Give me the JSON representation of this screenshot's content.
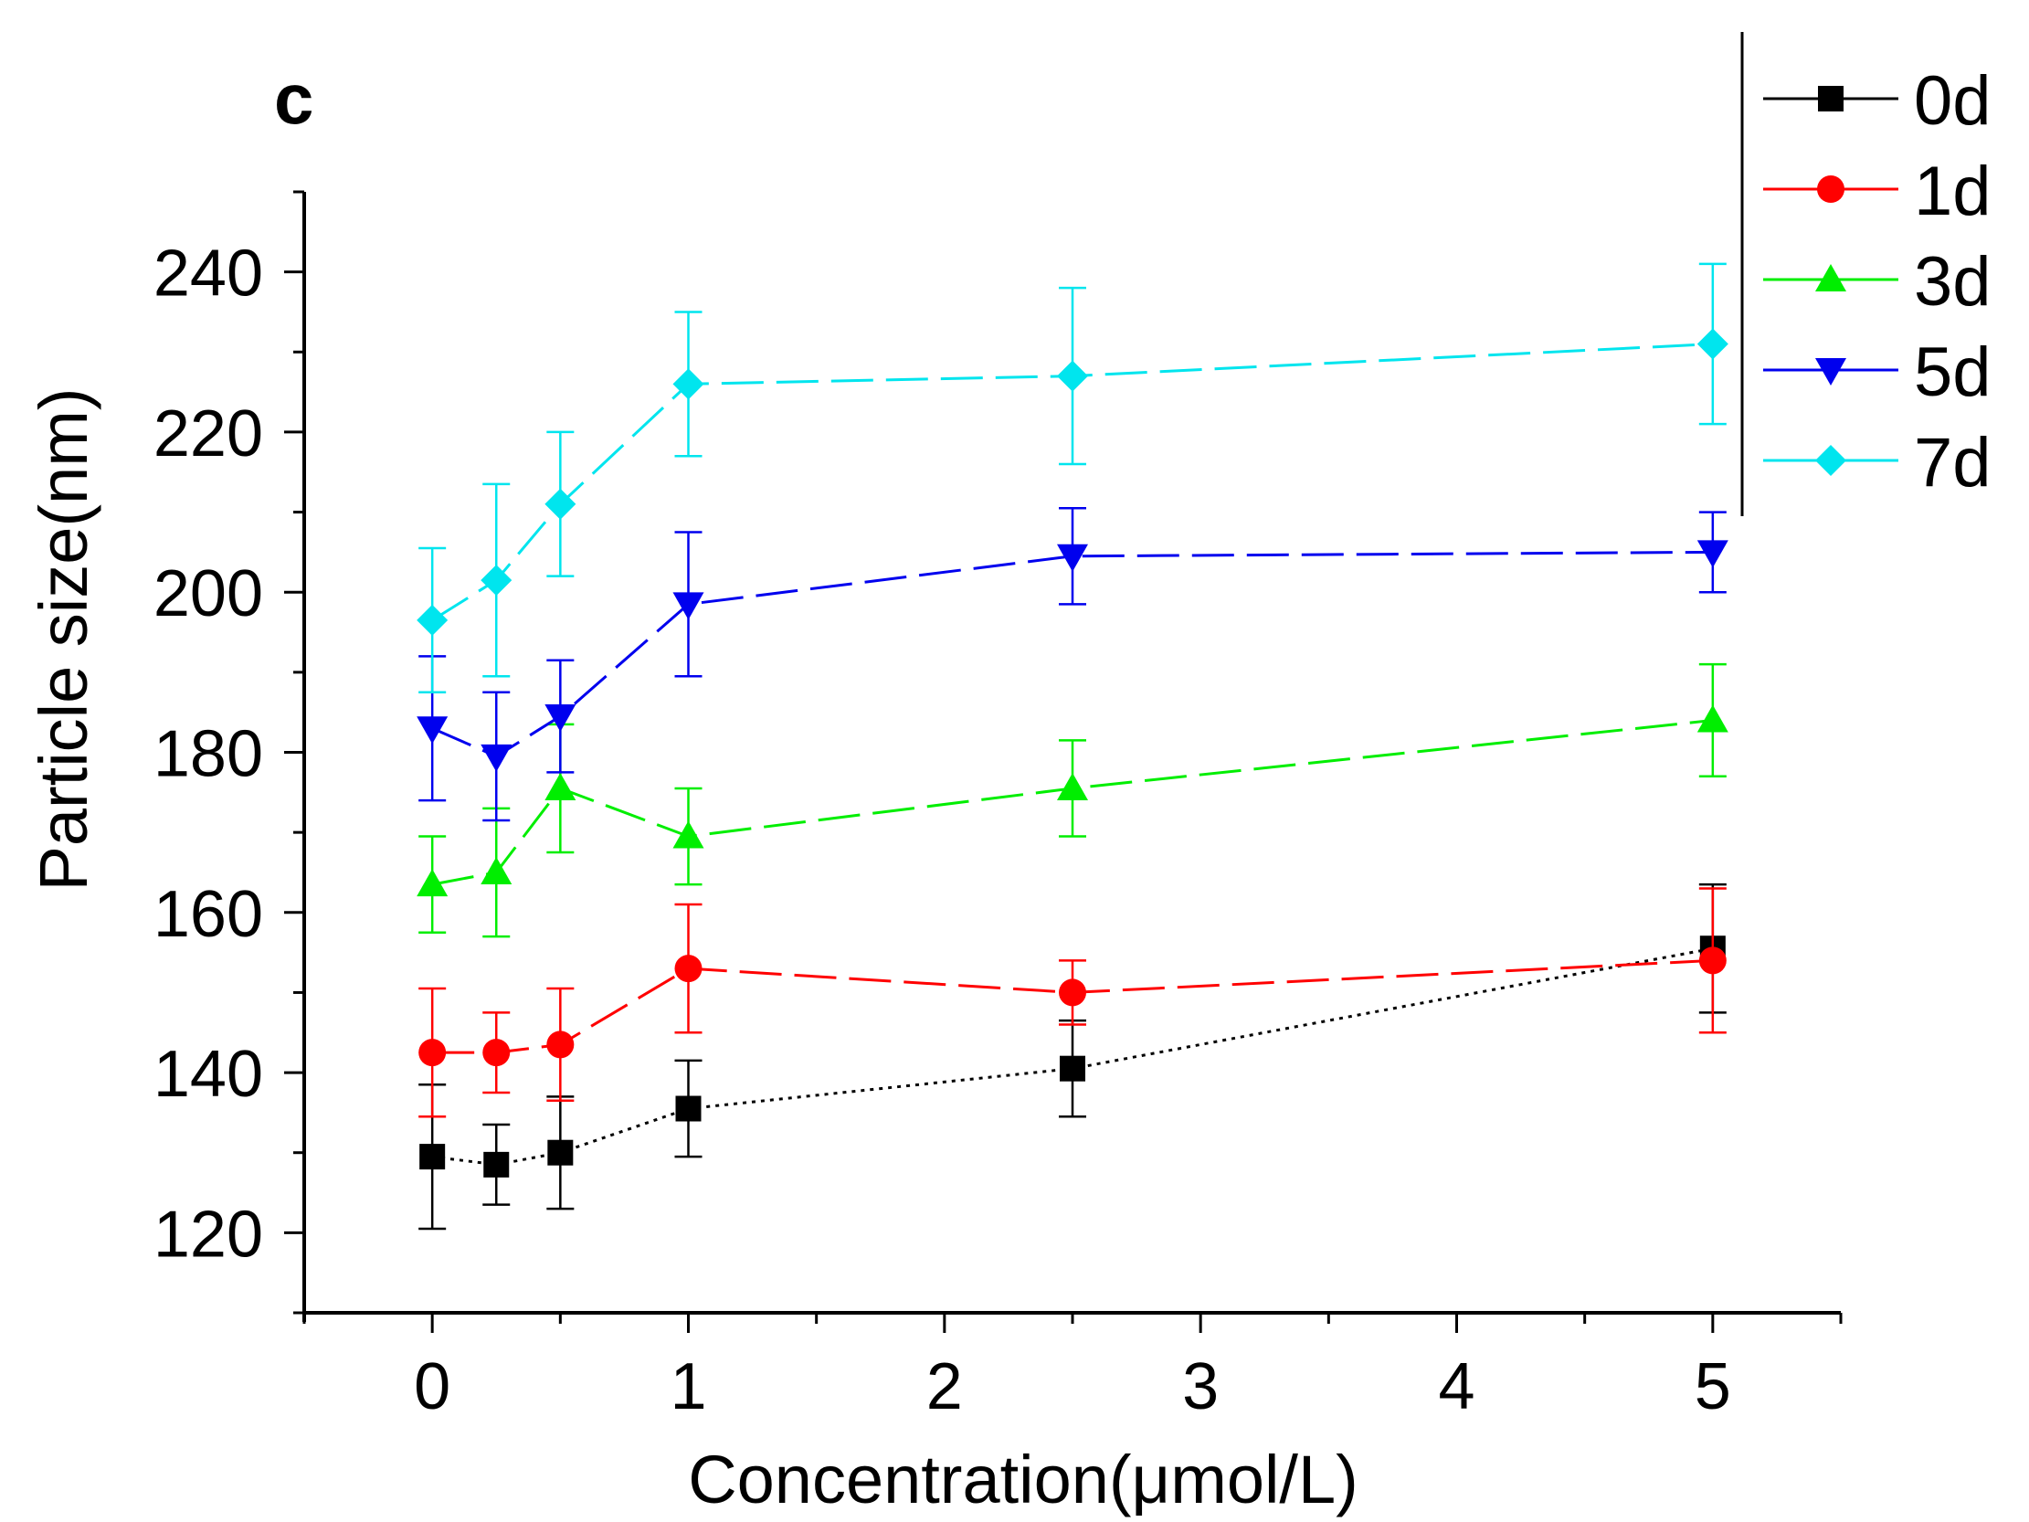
{
  "chart_data": {
    "type": "line",
    "panel_label": "c",
    "xlabel": "Concentration(μmol/L)",
    "ylabel": "Particle size(nm)",
    "xlim": [
      -0.5,
      5.5
    ],
    "ylim": [
      110,
      250
    ],
    "x_ticks": [
      0,
      1,
      2,
      3,
      4,
      5
    ],
    "x_tick_labels": [
      "0",
      "1",
      "2",
      "3",
      "4",
      "5"
    ],
    "y_ticks": [
      120,
      140,
      160,
      180,
      200,
      220,
      240
    ],
    "y_tick_labels": [
      "120",
      "140",
      "160",
      "180",
      "200",
      "220",
      "240"
    ],
    "grid": false,
    "legend_position": "top-right",
    "x": [
      0,
      0.25,
      0.5,
      1,
      2.5,
      5
    ],
    "series": [
      {
        "name": "0d",
        "color": "#000000",
        "marker": "square",
        "dash": "dotted",
        "values": [
          129.5,
          128.5,
          130,
          135.5,
          140.5,
          155.5
        ],
        "errors": [
          9,
          5,
          7,
          6,
          6,
          8
        ]
      },
      {
        "name": "1d",
        "color": "#ff0000",
        "marker": "circle",
        "dash": "dashed",
        "values": [
          142.5,
          142.5,
          143.5,
          153,
          150,
          154
        ],
        "errors": [
          8,
          5,
          7,
          8,
          4,
          9
        ]
      },
      {
        "name": "3d",
        "color": "#00ee00",
        "marker": "triangle-up",
        "dash": "dashed",
        "values": [
          163.5,
          165,
          175.5,
          169.5,
          175.5,
          184
        ],
        "errors": [
          6,
          8,
          8,
          6,
          6,
          7
        ]
      },
      {
        "name": "5d",
        "color": "#0000ee",
        "marker": "triangle-down",
        "dash": "dashed",
        "values": [
          183,
          179.5,
          184.5,
          198.5,
          204.5,
          205
        ],
        "errors": [
          9,
          8,
          7,
          9,
          6,
          5
        ]
      },
      {
        "name": "7d",
        "color": "#00e5ee",
        "marker": "diamond",
        "dash": "dashed",
        "values": [
          196.5,
          201.5,
          211,
          226,
          227,
          231
        ],
        "errors": [
          9,
          12,
          9,
          9,
          11,
          10
        ]
      }
    ]
  }
}
